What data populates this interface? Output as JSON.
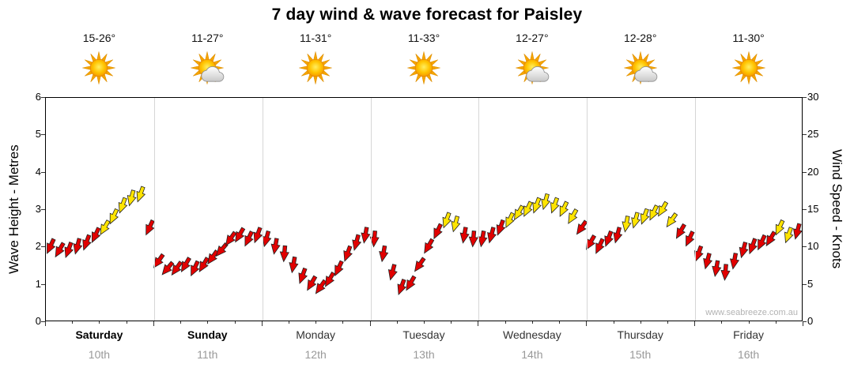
{
  "title": "7 day wind & wave forecast for Paisley",
  "watermark": "www.seabreeze.com.au",
  "days": [
    {
      "name": "Saturday",
      "date": "10th",
      "temp": "15-26°",
      "icon": "sun",
      "bold": true
    },
    {
      "name": "Sunday",
      "date": "11th",
      "temp": "11-27°",
      "icon": "sun-cloud",
      "bold": true
    },
    {
      "name": "Monday",
      "date": "12th",
      "temp": "11-31°",
      "icon": "sun",
      "bold": false
    },
    {
      "name": "Tuesday",
      "date": "13th",
      "temp": "11-33°",
      "icon": "sun",
      "bold": false
    },
    {
      "name": "Wednesday",
      "date": "14th",
      "temp": "12-27°",
      "icon": "sun-cloud",
      "bold": false
    },
    {
      "name": "Thursday",
      "date": "15th",
      "temp": "12-28°",
      "icon": "sun-cloud",
      "bold": false
    },
    {
      "name": "Friday",
      "date": "16th",
      "temp": "11-30°",
      "icon": "sun",
      "bold": false
    }
  ],
  "chart_data": {
    "type": "scatter",
    "marker": "wind-arrow",
    "title": "7 day wind & wave forecast for Paisley",
    "y_left": {
      "label": "Wave Height - Metres",
      "min": 0,
      "max": 6,
      "ticks": [
        0,
        1,
        2,
        3,
        4,
        5,
        6
      ]
    },
    "y_right": {
      "label": "Wind Speed - Knots",
      "min": 0,
      "max": 30,
      "ticks": [
        0,
        5,
        10,
        15,
        20,
        25,
        30
      ]
    },
    "categories": [
      "Saturday 10th",
      "Sunday 11th",
      "Monday 12th",
      "Tuesday 13th",
      "Wednesday 14th",
      "Thursday 15th",
      "Friday 16th"
    ],
    "points_per_day": 12,
    "grid": "day-separators-only",
    "legend": "none",
    "palette": {
      "r": "#e10000",
      "y": "#ffe400"
    },
    "wind_knots": [
      10,
      9.5,
      9.5,
      10,
      10.5,
      11.5,
      12.5,
      14,
      15.5,
      16.5,
      17,
      12.5,
      8,
      7,
      7,
      7.5,
      7,
      7.5,
      8.5,
      9.5,
      11,
      11.5,
      11,
      11.5,
      11,
      10,
      9,
      7.5,
      6,
      5,
      4.5,
      5.5,
      7,
      9,
      10.5,
      11.5,
      11,
      9,
      6.5,
      4.5,
      5,
      7.5,
      10,
      12,
      13.5,
      13,
      11.5,
      11,
      11,
      11.5,
      12.5,
      13.5,
      14.5,
      15,
      15.5,
      16,
      15.5,
      15,
      14,
      12.5,
      10.5,
      10,
      11,
      11.5,
      13,
      13.5,
      14,
      14.5,
      15,
      13.5,
      12,
      11,
      9,
      8,
      7,
      6.5,
      8,
      9.5,
      10,
      10.5,
      11,
      12.5,
      11.5,
      12
    ],
    "colors": [
      "r",
      "r",
      "r",
      "r",
      "r",
      "r",
      "y",
      "y",
      "y",
      "y",
      "y",
      "r",
      "r",
      "r",
      "r",
      "r",
      "r",
      "r",
      "r",
      "r",
      "r",
      "r",
      "r",
      "r",
      "r",
      "r",
      "r",
      "r",
      "r",
      "r",
      "r",
      "r",
      "r",
      "r",
      "r",
      "r",
      "r",
      "r",
      "r",
      "r",
      "r",
      "r",
      "r",
      "r",
      "y",
      "y",
      "r",
      "r",
      "r",
      "r",
      "r",
      "y",
      "y",
      "y",
      "y",
      "y",
      "y",
      "y",
      "y",
      "r",
      "r",
      "r",
      "r",
      "r",
      "y",
      "y",
      "y",
      "y",
      "y",
      "y",
      "r",
      "r",
      "r",
      "r",
      "r",
      "r",
      "r",
      "r",
      "r",
      "r",
      "r",
      "y",
      "y",
      "r"
    ],
    "dirs_deg": [
      205,
      210,
      200,
      195,
      200,
      205,
      210,
      205,
      200,
      195,
      200,
      205,
      215,
      220,
      215,
      210,
      205,
      210,
      215,
      220,
      215,
      210,
      205,
      200,
      195,
      190,
      185,
      190,
      200,
      210,
      215,
      210,
      205,
      200,
      195,
      190,
      185,
      190,
      195,
      200,
      210,
      215,
      210,
      205,
      200,
      195,
      190,
      185,
      190,
      195,
      200,
      205,
      210,
      205,
      200,
      195,
      200,
      205,
      210,
      215,
      210,
      205,
      200,
      195,
      190,
      195,
      200,
      205,
      210,
      215,
      210,
      205,
      200,
      195,
      190,
      185,
      190,
      195,
      200,
      205,
      210,
      205,
      200,
      195
    ]
  }
}
